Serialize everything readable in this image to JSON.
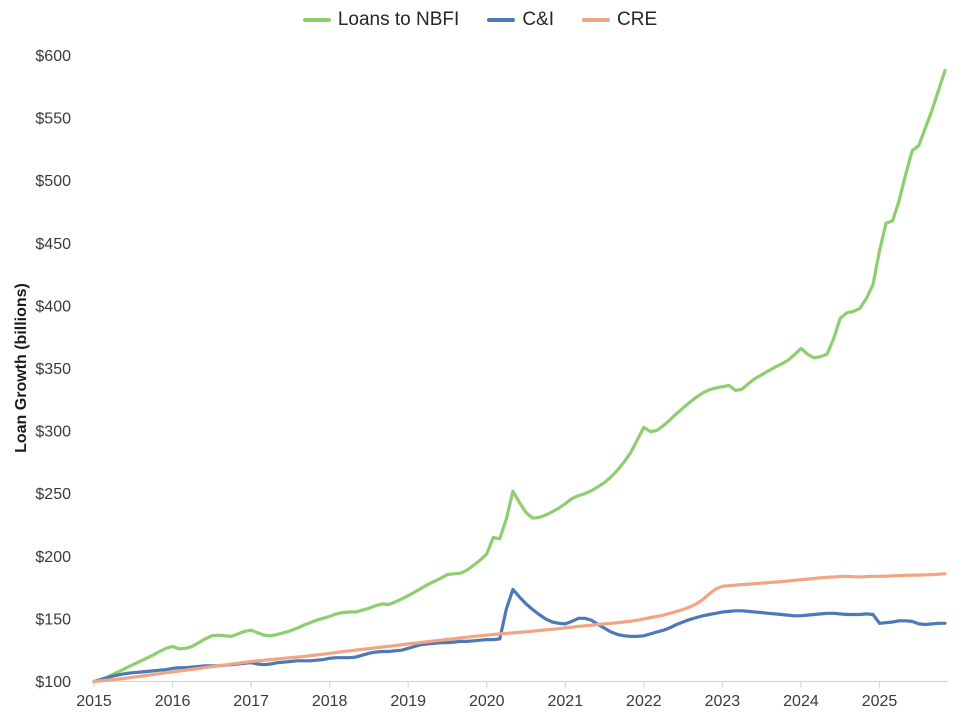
{
  "chart_data": {
    "type": "line",
    "title": "",
    "xlabel": "",
    "ylabel": "Loan Growth (billions)",
    "ylim": [
      100,
      600
    ],
    "xlim_years": [
      2015.0,
      2025.92
    ],
    "grid": false,
    "legend_position": "top-center",
    "axis_color": "#d9d9d9",
    "tick_text_color": "#3a3a3a",
    "x_start_year": 2015.0,
    "x_step_years": 0.0833333,
    "x_frequency": "monthly",
    "ytick_values": [
      100,
      150,
      200,
      250,
      300,
      350,
      400,
      450,
      500,
      550,
      600
    ],
    "ytick_labels": [
      "$100",
      "$150",
      "$200",
      "$250",
      "$300",
      "$350",
      "$400",
      "$450",
      "$500",
      "$550",
      "$600"
    ],
    "xtick_labels": [
      "2015",
      "2016",
      "2017",
      "2018",
      "2019",
      "2020",
      "2021",
      "2022",
      "2023",
      "2024",
      "2025"
    ],
    "series": [
      {
        "name": "Loans to NBFI",
        "color": "#8fce6e",
        "values": [
          100,
          101.5,
          103.5,
          106,
          108.5,
          111,
          113.5,
          116,
          118.5,
          121,
          124,
          126.5,
          128,
          126,
          126.5,
          128,
          131,
          134,
          136.5,
          137,
          136.5,
          136,
          138,
          140,
          141,
          139,
          137,
          136.5,
          137.5,
          139,
          140.5,
          142.5,
          145,
          147,
          149,
          150.5,
          152,
          154,
          155,
          155.5,
          155.5,
          157,
          158.5,
          160.5,
          162,
          161.5,
          163.5,
          166,
          168.5,
          171.5,
          174.5,
          177.5,
          180,
          182.5,
          185.5,
          186,
          186.5,
          189,
          193,
          197,
          202,
          215,
          214,
          230,
          252,
          243,
          235,
          230.5,
          231,
          233,
          235.5,
          238.5,
          242,
          246,
          248.5,
          250,
          252.5,
          255.5,
          259,
          263.5,
          269,
          275.5,
          283,
          293,
          303,
          299.5,
          300.5,
          304.5,
          309,
          314,
          318.5,
          323,
          327,
          330.5,
          333,
          334.5,
          335.5,
          336.5,
          332.5,
          333.5,
          338,
          342,
          345,
          348,
          351,
          353.5,
          356.5,
          361,
          366,
          361.5,
          358.5,
          359.5,
          361.5,
          374,
          390,
          394.5,
          395.5,
          398,
          406,
          417,
          444,
          466,
          468,
          484,
          505,
          524,
          528,
          542,
          556,
          572,
          588
        ]
      },
      {
        "name": "C&I",
        "color": "#4d79b6",
        "values": [
          100,
          101.5,
          103,
          104.5,
          105.5,
          106.5,
          107,
          107.5,
          108,
          108.5,
          109,
          109.5,
          110.5,
          111,
          111,
          111.5,
          112,
          112.5,
          112.5,
          112.5,
          113,
          113.5,
          114,
          114.5,
          115,
          114,
          113.5,
          114,
          115,
          115.5,
          116,
          116.5,
          116.5,
          116.5,
          117,
          117.5,
          118.5,
          119,
          119,
          119,
          119.5,
          121,
          122.5,
          123.5,
          124,
          124,
          124.5,
          125,
          126.5,
          128,
          129.5,
          130,
          130.5,
          131,
          131,
          131.5,
          132,
          132,
          132.5,
          133,
          133.5,
          133.5,
          134,
          158,
          173.5,
          167.5,
          162,
          157.5,
          153.5,
          150,
          147.5,
          146.5,
          146,
          148,
          150.5,
          150.5,
          149,
          145.5,
          142.5,
          139.5,
          137.5,
          136.5,
          136,
          136,
          136.5,
          138,
          139.5,
          141,
          143,
          145.5,
          147.5,
          149.5,
          151,
          152.5,
          153.5,
          154.5,
          155.5,
          156,
          156.5,
          156.5,
          156,
          155.5,
          155,
          154.5,
          154,
          153.5,
          153,
          152.5,
          152.5,
          153,
          153.5,
          154,
          154.5,
          154.5,
          154,
          153.5,
          153.5,
          153.5,
          154,
          153.5,
          146.5,
          147,
          147.5,
          148.5,
          148.5,
          148,
          146,
          145.5,
          146,
          146.5,
          146.5
        ]
      },
      {
        "name": "CRE",
        "color": "#f0a583",
        "values": [
          100,
          100.5,
          101,
          101.5,
          102,
          102.7,
          103.4,
          104.1,
          104.8,
          105.5,
          106.2,
          107,
          107.6,
          108.3,
          109,
          109.7,
          110.4,
          111.1,
          111.8,
          112.5,
          113.2,
          113.9,
          114.6,
          115.3,
          116,
          116.5,
          117,
          117.5,
          118,
          118.5,
          119,
          119.5,
          120,
          120.6,
          121.2,
          121.8,
          122.5,
          123.2,
          123.9,
          124.5,
          125.1,
          125.7,
          126.3,
          126.9,
          127.5,
          128.1,
          128.7,
          129.3,
          130,
          130.6,
          131.2,
          131.8,
          132.4,
          133,
          133.6,
          134.2,
          134.8,
          135.4,
          136,
          136.5,
          137,
          137.5,
          138,
          138.4,
          138.8,
          139.2,
          139.7,
          140.2,
          140.7,
          141.2,
          141.7,
          142.2,
          142.8,
          143.4,
          144,
          144.5,
          145,
          145.5,
          146,
          146.5,
          147,
          147.6,
          148.2,
          149,
          150,
          151,
          152,
          153,
          154.5,
          156,
          157.5,
          159.5,
          162,
          165.5,
          170,
          174,
          176,
          176.5,
          177,
          177.4,
          177.8,
          178.2,
          178.6,
          179,
          179.4,
          179.8,
          180.3,
          180.8,
          181.3,
          181.8,
          182.3,
          182.8,
          183.2,
          183.5,
          183.8,
          184,
          183.7,
          183.5,
          183.8,
          184,
          184,
          184.2,
          184.4,
          184.6,
          184.8,
          185,
          185,
          185.2,
          185.4,
          185.7,
          186
        ]
      }
    ]
  }
}
